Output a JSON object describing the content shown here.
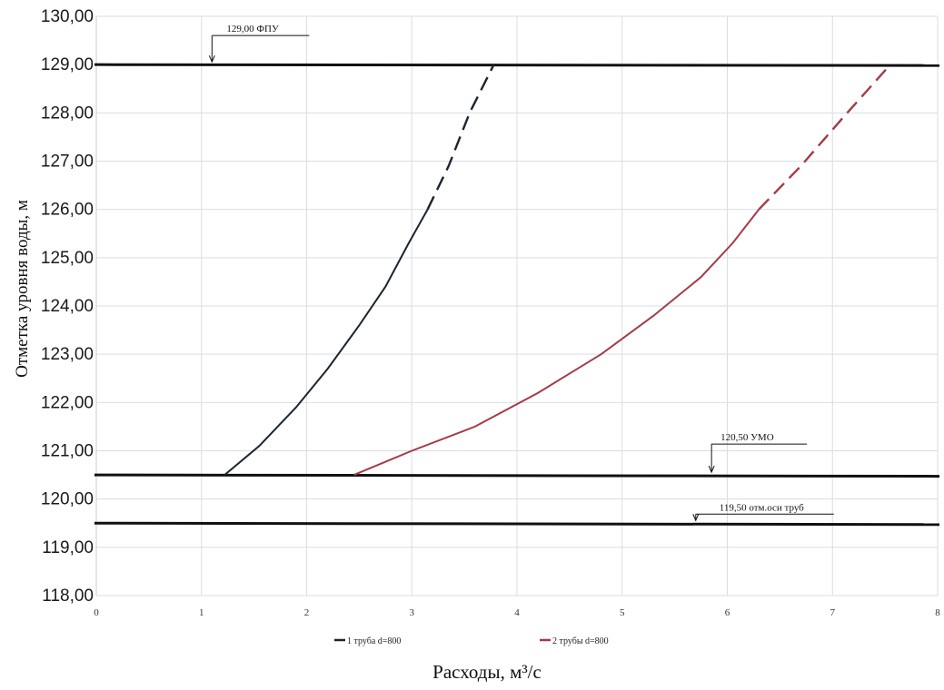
{
  "chart_data": {
    "type": "line",
    "xlabel": "Расходы, м³/с",
    "ylabel": "Отметка уровня воды, м",
    "xlim": [
      0,
      8
    ],
    "ylim": [
      118,
      130
    ],
    "x_ticks": [
      0,
      1,
      2,
      3,
      4,
      5,
      6,
      7,
      8
    ],
    "y_ticks": [
      "118,00",
      "119,00",
      "120,00",
      "121,00",
      "122,00",
      "123,00",
      "124,00",
      "125,00",
      "126,00",
      "127,00",
      "128,00",
      "129,00",
      "130,00"
    ],
    "grid": true,
    "legend_position": "bottom",
    "series": [
      {
        "name": "1 труба d=800",
        "color": "#1c2430",
        "solid": [
          [
            1.22,
            120.5
          ],
          [
            1.55,
            121.1
          ],
          [
            1.9,
            121.9
          ],
          [
            2.2,
            122.7
          ],
          [
            2.5,
            123.6
          ],
          [
            2.75,
            124.4
          ],
          [
            2.97,
            125.3
          ],
          [
            3.15,
            126.0
          ]
        ],
        "dashed": [
          [
            3.15,
            126.0
          ],
          [
            3.35,
            126.9
          ],
          [
            3.55,
            128.0
          ],
          [
            3.78,
            129.0
          ]
        ]
      },
      {
        "name": "2 трубы d=800",
        "color": "#a53a48",
        "solid": [
          [
            2.45,
            120.5
          ],
          [
            3.0,
            121.0
          ],
          [
            3.6,
            121.5
          ],
          [
            4.2,
            122.2
          ],
          [
            4.8,
            123.0
          ],
          [
            5.3,
            123.8
          ],
          [
            5.75,
            124.6
          ],
          [
            6.05,
            125.3
          ],
          [
            6.3,
            126.0
          ]
        ],
        "dashed": [
          [
            6.3,
            126.0
          ],
          [
            6.7,
            126.9
          ],
          [
            7.1,
            127.9
          ],
          [
            7.55,
            129.0
          ]
        ]
      }
    ],
    "reference_lines": [
      {
        "name": "ФПУ",
        "y": 129.0,
        "label": "129,00 ФПУ",
        "arrow_x": 1.1
      },
      {
        "name": "УМО",
        "y": 120.5,
        "label": "120,50 УМО",
        "arrow_x": 5.85
      },
      {
        "name": "ось труб",
        "y": 119.5,
        "label": "119,50 отм.оси труб",
        "arrow_x": 5.7
      }
    ]
  }
}
